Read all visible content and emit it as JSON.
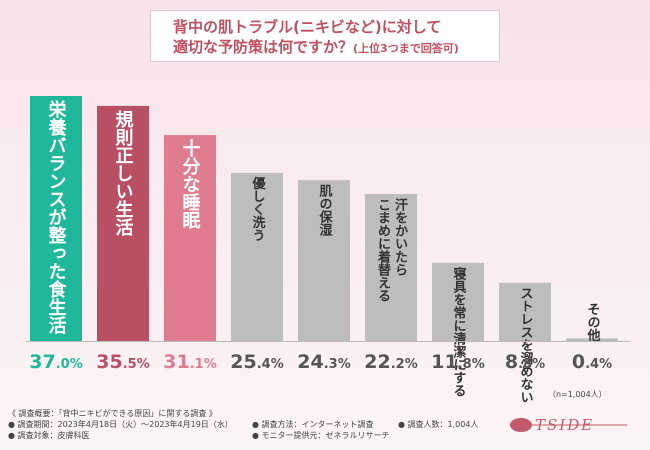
{
  "header": {
    "title_line1": "背中の肌トラブル(ニキビなど)に対して",
    "title_line2": "適切な予防策は何ですか？",
    "title_note": "(上位3つまで回答可)"
  },
  "sample_note": "（n=1,004人）",
  "footer": {
    "survey_summary": "《 調査概要：「背中ニキビができる原因」に関する調査 》",
    "period": "● 調査期間：2023年4月18日（火）〜2023年4月19日（水）",
    "target": "● 調査対象：皮膚科医",
    "method": "● 調査方法：インターネット調査",
    "provider": "● モニター提供元：ゼネラルリサーチ",
    "count": "● 調査人数：1,004人"
  },
  "logo": {
    "text": "TSIDE"
  },
  "colors": {
    "top1": "#1fb89a",
    "top2": "#b84f63",
    "top3": "#e07c90",
    "rest": "#bdbdbd",
    "value_top1": "#1fb89a",
    "value_top2": "#b84f63",
    "value_top3": "#e07c90",
    "value_rest": "#555555"
  },
  "chart_data": {
    "type": "bar",
    "categories": [
      "栄養バランスが整った食生活",
      "規則正しい生活",
      "十分な睡眠",
      "優しく洗う",
      "肌の保湿",
      "汗をかいたらこまめに着替える",
      "寝具を常に清潔にする",
      "ストレスを溜めない",
      "その他"
    ],
    "label_lines": [
      [
        "栄養バランスが整った食生活"
      ],
      [
        "規則正しい生活"
      ],
      [
        "十分な睡眠"
      ],
      [
        "優しく洗う"
      ],
      [
        "肌の保湿"
      ],
      [
        "汗をかいたら",
        "こまめに着替える"
      ],
      [
        "寝具を常に清潔にする"
      ],
      [
        "ストレスを溜めない"
      ],
      [
        "その他"
      ]
    ],
    "values": [
      37.0,
      35.5,
      31.1,
      25.4,
      24.3,
      22.2,
      11.8,
      8.8,
      0.4
    ],
    "value_labels": [
      {
        "int": "37",
        "dec": ".0%"
      },
      {
        "int": "35",
        "dec": ".5%"
      },
      {
        "int": "31",
        "dec": ".1%"
      },
      {
        "int": "25",
        "dec": ".4%"
      },
      {
        "int": "24",
        "dec": ".3%"
      },
      {
        "int": "22",
        "dec": ".2%"
      },
      {
        "int": "11",
        "dec": ".8%"
      },
      {
        "int": "8",
        "dec": ".8%"
      },
      {
        "int": "0",
        "dec": ".4%"
      }
    ],
    "ylim": [
      0,
      37.0
    ]
  }
}
